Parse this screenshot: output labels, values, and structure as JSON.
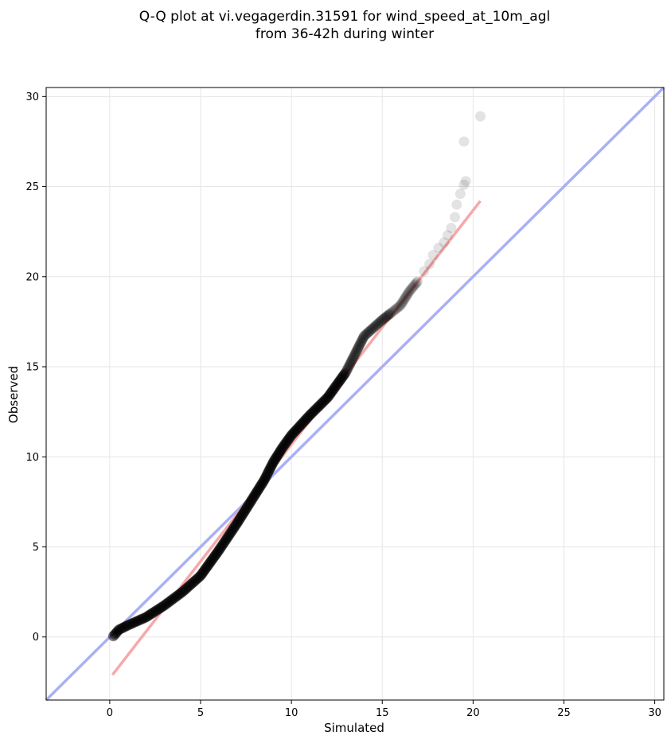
{
  "chart_data": {
    "type": "scatter",
    "title_lines": [
      "Q-Q plot at vi.vegagerdin.31591 for wind_speed_at_10m_agl",
      "from 36-42h during winter"
    ],
    "xlabel": "Simulated",
    "ylabel": "Observed",
    "xlim": [
      -3.5,
      30.5
    ],
    "ylim": [
      -3.5,
      30.5
    ],
    "xticks": [
      0,
      5,
      10,
      15,
      20,
      25,
      30
    ],
    "yticks": [
      0,
      5,
      10,
      15,
      20,
      25,
      30
    ],
    "grid": true,
    "colors": {
      "points": "#000000",
      "identity_line": "#aab0f4",
      "fit_line": "#f7a8a8"
    },
    "identity_line": {
      "x": [
        -3.5,
        30.5
      ],
      "y": [
        -3.5,
        30.5
      ]
    },
    "fit_line": {
      "x": [
        0.15,
        20.4
      ],
      "y": [
        -2.1,
        24.2
      ]
    },
    "quantile_curve": [
      [
        0.2,
        0.05
      ],
      [
        0.5,
        0.4
      ],
      [
        1.0,
        0.65
      ],
      [
        2.0,
        1.1
      ],
      [
        3.0,
        1.75
      ],
      [
        4.0,
        2.5
      ],
      [
        5.0,
        3.4
      ],
      [
        6.0,
        4.8
      ],
      [
        7.0,
        6.3
      ],
      [
        8.0,
        7.9
      ],
      [
        8.5,
        8.7
      ],
      [
        9.0,
        9.7
      ],
      [
        9.5,
        10.5
      ],
      [
        10.0,
        11.2
      ],
      [
        11.0,
        12.3
      ],
      [
        12.0,
        13.3
      ],
      [
        13.0,
        14.7
      ],
      [
        13.5,
        15.7
      ],
      [
        14.0,
        16.7
      ],
      [
        15.0,
        17.6
      ],
      [
        16.0,
        18.4
      ],
      [
        16.5,
        19.2
      ],
      [
        17.0,
        19.8
      ]
    ],
    "tail_points": [
      [
        17.3,
        20.3
      ],
      [
        17.6,
        20.7
      ],
      [
        17.8,
        21.2
      ],
      [
        18.1,
        21.6
      ],
      [
        18.4,
        21.9
      ],
      [
        18.6,
        22.3
      ],
      [
        18.8,
        22.7
      ],
      [
        19.0,
        23.3
      ],
      [
        19.1,
        24.0
      ],
      [
        19.3,
        24.6
      ],
      [
        19.5,
        25.1
      ],
      [
        19.6,
        25.3
      ],
      [
        19.5,
        27.5
      ],
      [
        20.4,
        28.9
      ]
    ]
  }
}
